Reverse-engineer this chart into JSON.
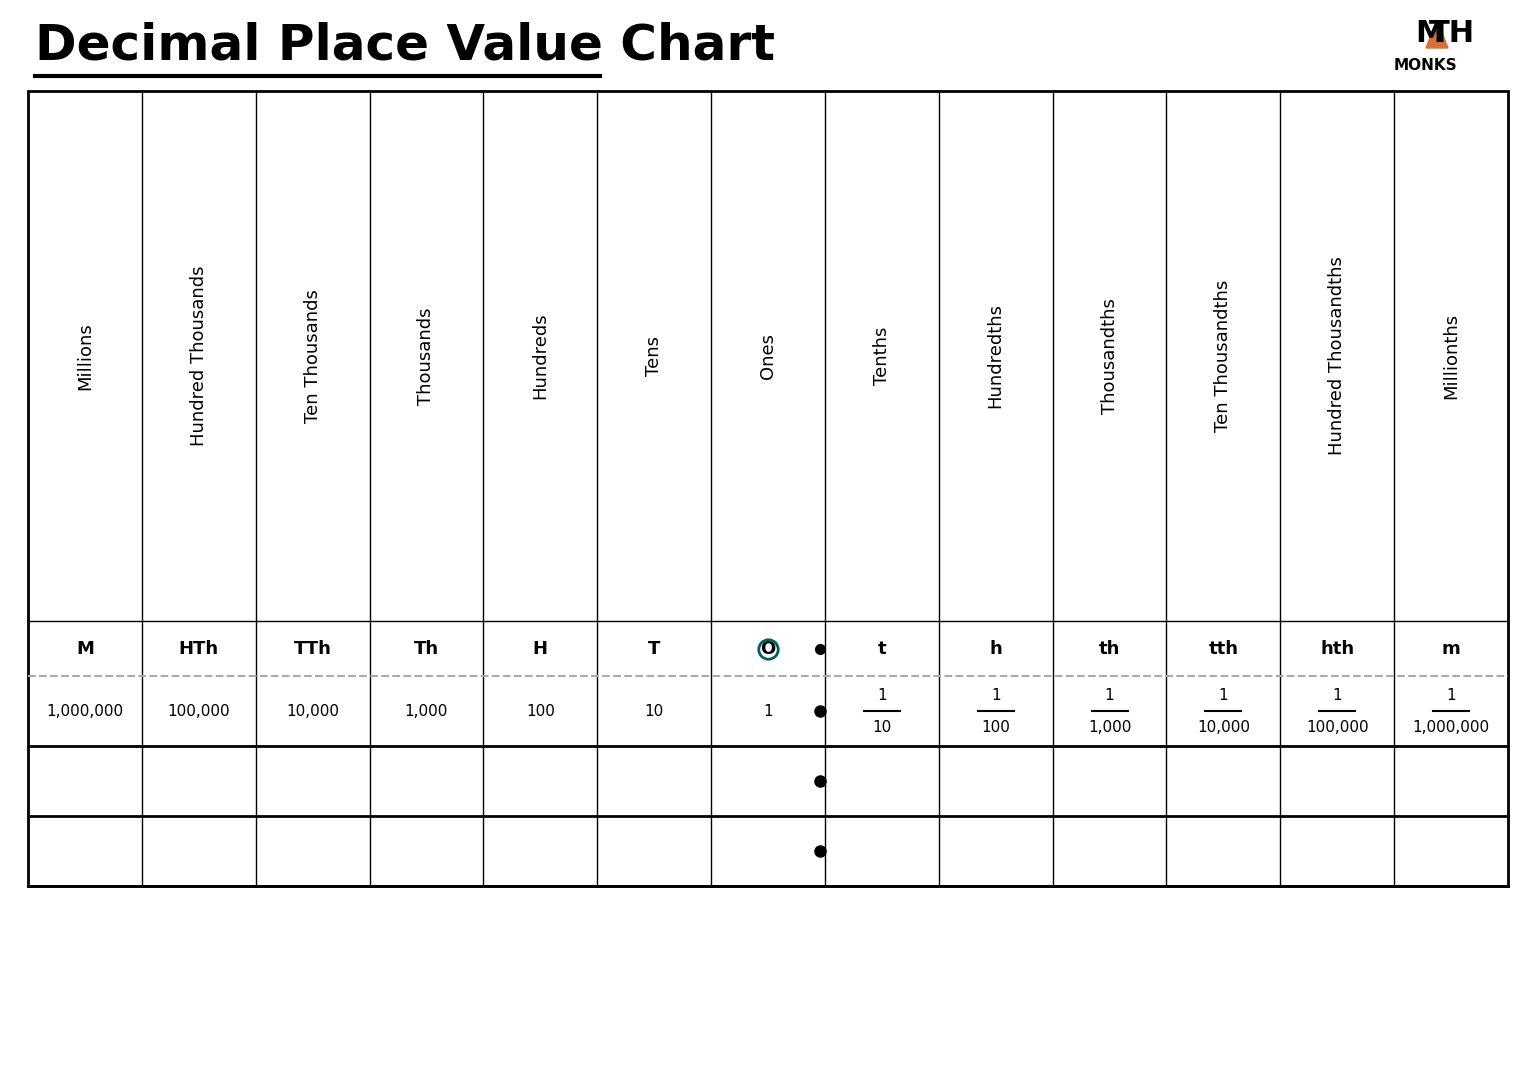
{
  "title": "Decimal Place Value Chart",
  "background_color": "#ffffff",
  "title_fontsize": 36,
  "title_font": "DejaVu Sans",
  "columns": [
    {
      "header": "Millions",
      "abbr": "M",
      "value": "1,000,000"
    },
    {
      "header": "Hundred Thousands",
      "abbr": "HTh",
      "value": "100,000"
    },
    {
      "header": "Ten Thousands",
      "abbr": "TTh",
      "value": "10,000"
    },
    {
      "header": "Thousands",
      "abbr": "Th",
      "value": "1,000"
    },
    {
      "header": "Hundreds",
      "abbr": "H",
      "value": "100"
    },
    {
      "header": "Tens",
      "abbr": "T",
      "value": "10"
    },
    {
      "header": "Ones",
      "abbr": "O",
      "value": "1"
    },
    {
      "header": "Tenths",
      "abbr": "t",
      "value_num": "1",
      "value_den": "10"
    },
    {
      "header": "Hundredths",
      "abbr": "h",
      "value_num": "1",
      "value_den": "100"
    },
    {
      "header": "Thousandths",
      "abbr": "th",
      "value_num": "1",
      "value_den": "1,000"
    },
    {
      "header": "Ten Thousandths",
      "abbr": "tth",
      "value_num": "1",
      "value_den": "10,000"
    },
    {
      "header": "Hundred Thousandths",
      "abbr": "hth",
      "value_num": "1",
      "value_den": "100,000"
    },
    {
      "header": "Millionths",
      "abbr": "m",
      "value_num": "1",
      "value_den": "1,000,000"
    }
  ],
  "decimal_col": 7,
  "dot_col": 6,
  "grid_color": "#000000",
  "dashed_line_color": "#aaaaaa",
  "dot_color": "#000000",
  "mathmonks_triangle_color": "#d4703a",
  "example_rows": 2
}
